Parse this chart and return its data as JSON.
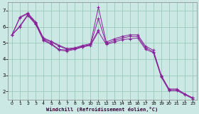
{
  "xlabel": "Windchill (Refroidissement éolien,°C)",
  "bg_color": "#cce8e4",
  "line_color": "#882299",
  "grid_color": "#99ccbb",
  "xlim": [
    -0.5,
    23.5
  ],
  "ylim": [
    1.5,
    7.5
  ],
  "xticks": [
    0,
    1,
    2,
    3,
    4,
    5,
    6,
    7,
    8,
    9,
    10,
    11,
    12,
    13,
    14,
    15,
    16,
    17,
    18,
    19,
    20,
    21,
    22,
    23
  ],
  "yticks": [
    2,
    3,
    4,
    5,
    6,
    7
  ],
  "series": [
    {
      "x": [
        0,
        1,
        2,
        3,
        4,
        5,
        6,
        7,
        8,
        9,
        10,
        11,
        12,
        13,
        14,
        15,
        16,
        17,
        18,
        19,
        20,
        21,
        22,
        23
      ],
      "y": [
        5.5,
        6.6,
        6.85,
        6.3,
        5.3,
        5.1,
        4.85,
        4.65,
        4.7,
        4.85,
        4.95,
        7.2,
        5.05,
        5.25,
        5.4,
        5.5,
        5.5,
        4.8,
        4.55,
        3.0,
        2.15,
        2.15,
        1.85,
        1.6
      ]
    },
    {
      "x": [
        0,
        1,
        2,
        3,
        4,
        5,
        6,
        7,
        8,
        9,
        10,
        11,
        12,
        13,
        14,
        15,
        16,
        17,
        18,
        19,
        20,
        21,
        22,
        23
      ],
      "y": [
        5.5,
        6.55,
        6.8,
        6.25,
        5.25,
        5.05,
        4.8,
        4.6,
        4.65,
        4.8,
        4.9,
        6.5,
        4.95,
        5.15,
        5.3,
        5.4,
        5.4,
        4.7,
        4.45,
        2.95,
        2.1,
        2.1,
        1.85,
        1.6
      ]
    },
    {
      "x": [
        0,
        1,
        2,
        3,
        4,
        5,
        6,
        7,
        8,
        9,
        10,
        11
      ],
      "y": [
        5.5,
        6.05,
        6.75,
        6.2,
        5.2,
        4.95,
        4.6,
        4.55,
        4.65,
        4.75,
        4.9,
        5.8
      ]
    },
    {
      "x": [
        0,
        1,
        2,
        3,
        4,
        5,
        6,
        7,
        8,
        9,
        10,
        11,
        12,
        13,
        14,
        15,
        16,
        17,
        18,
        19,
        20,
        21,
        22,
        23
      ],
      "y": [
        5.5,
        6.0,
        6.7,
        6.15,
        5.15,
        4.9,
        4.55,
        4.5,
        4.6,
        4.75,
        4.85,
        5.7,
        4.9,
        5.05,
        5.2,
        5.25,
        5.3,
        4.6,
        4.4,
        2.9,
        2.05,
        2.05,
        1.8,
        1.55
      ]
    }
  ]
}
